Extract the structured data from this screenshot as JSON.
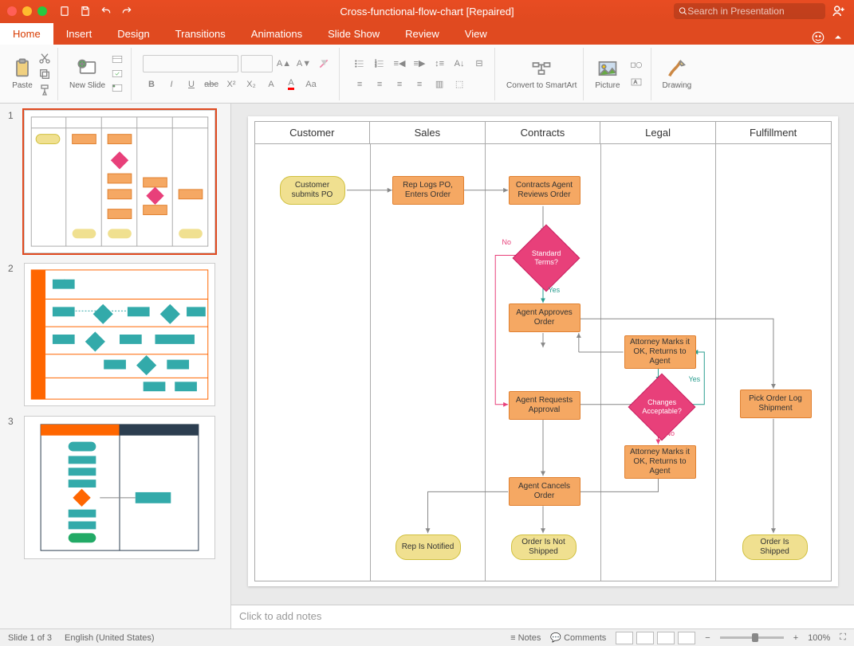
{
  "window": {
    "title": "Cross-functional-flow-chart [Repaired]",
    "search_placeholder": "Search in Presentation"
  },
  "tabs": {
    "items": [
      "Home",
      "Insert",
      "Design",
      "Transitions",
      "Animations",
      "Slide Show",
      "Review",
      "View"
    ],
    "active_index": 0
  },
  "ribbon": {
    "paste": "Paste",
    "new_slide": "New Slide",
    "convert": "Convert to SmartArt",
    "picture": "Picture",
    "drawing": "Drawing",
    "font_buttons": [
      "B",
      "I",
      "U",
      "abc",
      "X²",
      "X₂"
    ],
    "font_row1": [
      "A▲",
      "A▼",
      "A"
    ]
  },
  "thumbnails": {
    "count": 3,
    "selected": 1
  },
  "slide": {
    "lanes": [
      "Customer",
      "Sales",
      "Contracts",
      "Legal",
      "Fulfillment"
    ],
    "shapes": {
      "cust_submit": "Customer submits PO",
      "rep_logs": "Rep Logs PO, Enters Order",
      "agent_review": "Contracts Agent Reviews Order",
      "std_terms": "Standard Terms?",
      "agent_approve": "Agent Approves Order",
      "agent_request": "Agent Requests Approval",
      "agent_cancel": "Agent Cancels Order",
      "attorney1": "Attorney Marks it OK, Returns to Agent",
      "changes": "Changes Acceptable?",
      "attorney2": "Attorney Marks it OK, Returns to Agent",
      "pick_order": "Pick Order Log Shipment",
      "rep_notified": "Rep Is Notified",
      "not_shipped": "Order Is Not Shipped",
      "shipped": "Order Is Shipped"
    },
    "edge_labels": {
      "yes": "Yes",
      "no": "No"
    },
    "colors": {
      "process_bg": "#f5a863",
      "process_border": "#e08030",
      "terminator_bg": "#f0e090",
      "terminator_border": "#d0c040",
      "decision_bg": "#e8407a",
      "decision_border": "#c82060",
      "lane_border": "#aaaaaa",
      "arrow": "#888888",
      "arrow_pink": "#e8407a",
      "arrow_teal": "#2a9d8f"
    },
    "layout": {
      "lane_width_pct": 20,
      "shape_sizes": {
        "process": [
          90,
          36
        ],
        "terminator": [
          82,
          36
        ],
        "decision": [
          55,
          55
        ]
      }
    }
  },
  "notes": {
    "placeholder": "Click to add notes"
  },
  "status": {
    "slide_info": "Slide 1 of 3",
    "language": "English (United States)",
    "notes": "Notes",
    "comments": "Comments",
    "zoom": "100%"
  }
}
